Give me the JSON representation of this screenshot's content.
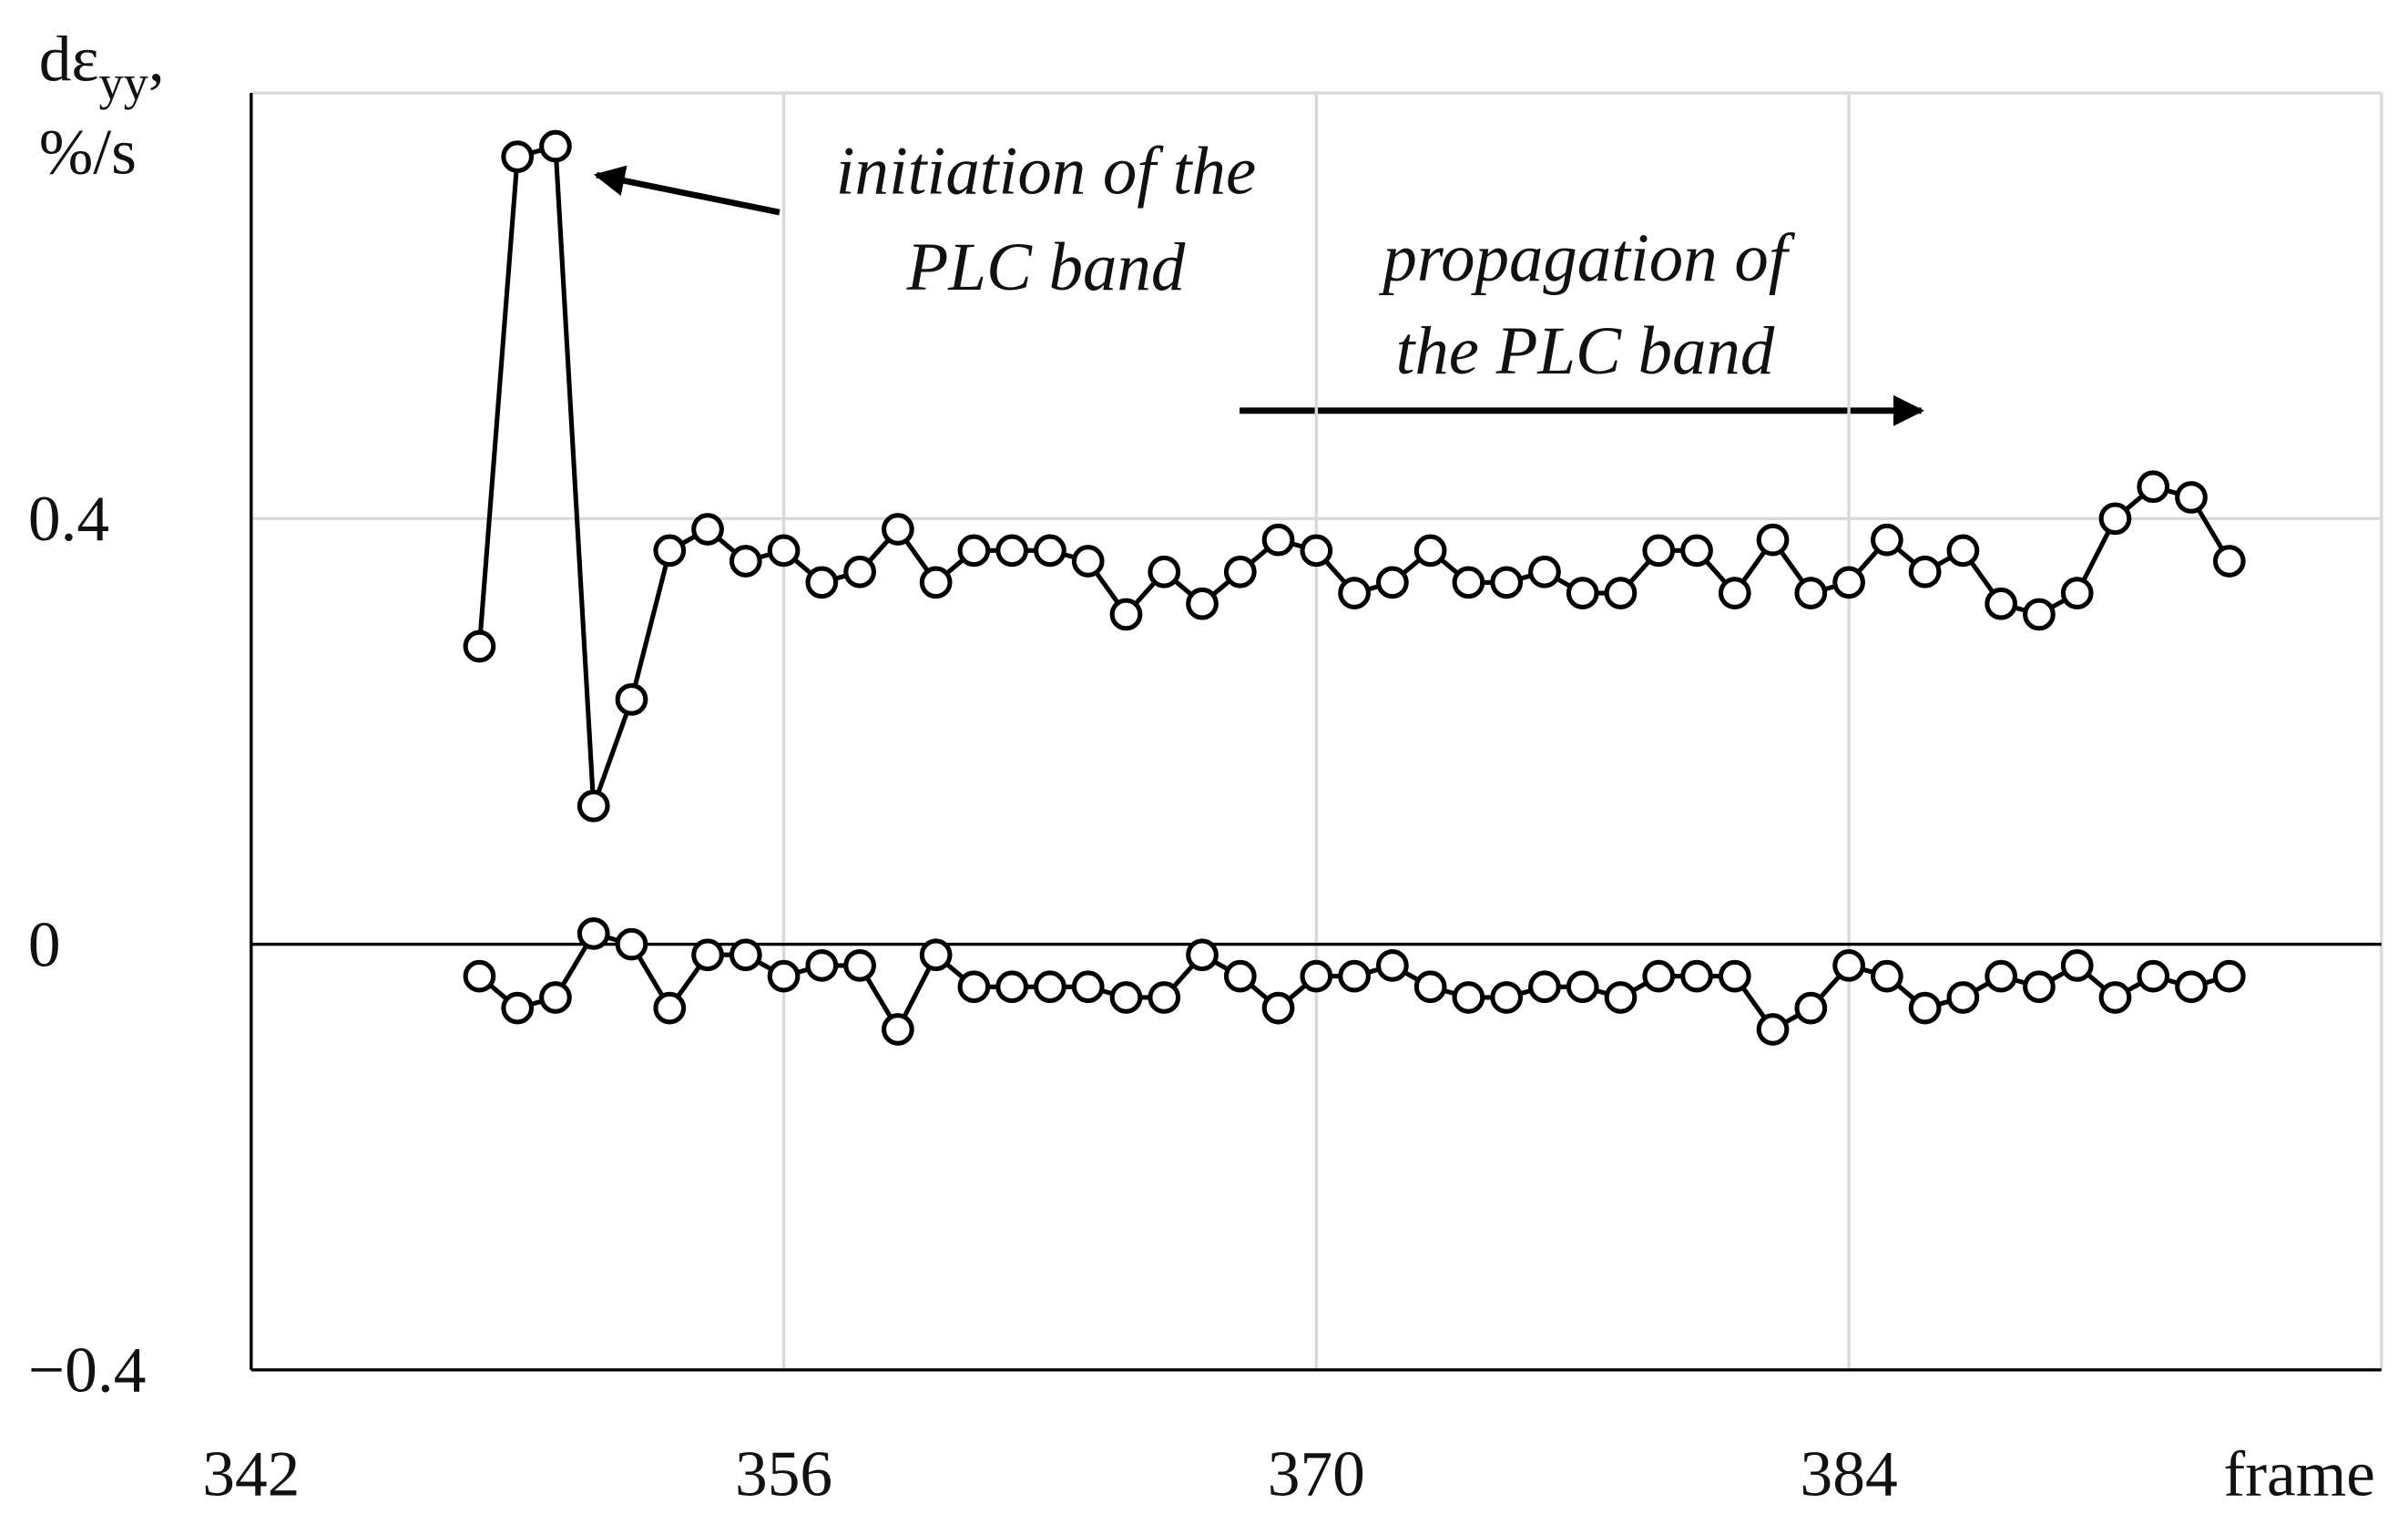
{
  "chart_data": {
    "type": "line",
    "ylabel": {
      "main": "dε",
      "subscript": "yy",
      "suffix": ",",
      "unit": "%/s"
    },
    "xlabel": "frame",
    "annotations": [
      {
        "lines": [
          "initiation of the",
          "PLC band"
        ]
      },
      {
        "lines": [
          "propagation of",
          "the PLC band"
        ]
      }
    ],
    "x": [
      348,
      349,
      350,
      351,
      352,
      353,
      354,
      355,
      356,
      357,
      358,
      359,
      360,
      361,
      362,
      363,
      364,
      365,
      366,
      367,
      368,
      369,
      370,
      371,
      372,
      373,
      374,
      375,
      376,
      377,
      378,
      379,
      380,
      381,
      382,
      383,
      384,
      385,
      386,
      387,
      388,
      389,
      390,
      391,
      392,
      393,
      394
    ],
    "series": [
      {
        "color": "#000000",
        "values": [
          0.28,
          0.74,
          0.75,
          0.13,
          0.23,
          0.37,
          0.39,
          0.36,
          0.37,
          0.34,
          0.35,
          0.39,
          0.34,
          0.37,
          0.37,
          0.37,
          0.36,
          0.31,
          0.35,
          0.32,
          0.35,
          0.38,
          0.37,
          0.33,
          0.34,
          0.37,
          0.34,
          0.34,
          0.35,
          0.33,
          0.33,
          0.37,
          0.37,
          0.33,
          0.38,
          0.33,
          0.34,
          0.38,
          0.35,
          0.37,
          0.32,
          0.31,
          0.33,
          0.4,
          0.43,
          0.42,
          0.36
        ]
      },
      {
        "color": "#000000",
        "values": [
          -0.03,
          -0.06,
          -0.05,
          0.01,
          0.0,
          -0.06,
          -0.01,
          -0.01,
          -0.03,
          -0.02,
          -0.02,
          -0.08,
          -0.01,
          -0.04,
          -0.04,
          -0.04,
          -0.04,
          -0.05,
          -0.05,
          -0.01,
          -0.03,
          -0.06,
          -0.03,
          -0.03,
          -0.02,
          -0.04,
          -0.05,
          -0.05,
          -0.04,
          -0.04,
          -0.05,
          -0.03,
          -0.03,
          -0.03,
          -0.08,
          -0.06,
          -0.02,
          -0.03,
          -0.06,
          -0.05,
          -0.03,
          -0.04,
          -0.02,
          -0.05,
          -0.03,
          -0.04,
          -0.03
        ]
      }
    ],
    "xlim": [
      342,
      398
    ],
    "xticks": [
      342,
      356,
      370,
      384
    ],
    "ylim": [
      -0.4,
      0.8
    ],
    "yticks": [
      {
        "value": -0.4,
        "label": "−0.4"
      },
      0,
      0.4
    ],
    "grid": true
  }
}
